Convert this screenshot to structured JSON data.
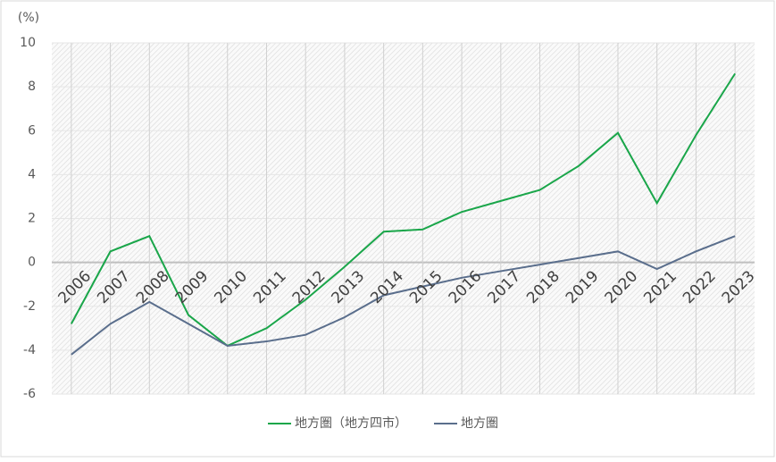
{
  "chart_data": {
    "type": "line",
    "y_label": "(%)",
    "categories": [
      "2006",
      "2007",
      "2008",
      "2009",
      "2010",
      "2011",
      "2012",
      "2013",
      "2014",
      "2015",
      "2016",
      "2017",
      "2018",
      "2019",
      "2020",
      "2021",
      "2022",
      "2023"
    ],
    "series": [
      {
        "name": "地方圏（地方四市）",
        "color": "#1aa64a",
        "values": [
          -2.8,
          0.5,
          1.2,
          -2.4,
          -3.8,
          -3.0,
          -1.7,
          -0.2,
          1.4,
          1.5,
          2.3,
          2.8,
          3.3,
          4.4,
          5.9,
          2.7,
          5.8,
          8.6
        ]
      },
      {
        "name": "地方圏",
        "color": "#5a6e8c",
        "values": [
          -4.2,
          -2.8,
          -1.8,
          -2.8,
          -3.8,
          -3.6,
          -3.3,
          -2.5,
          -1.5,
          -1.1,
          -0.7,
          -0.4,
          -0.1,
          0.2,
          0.5,
          -0.3,
          0.5,
          1.2
        ]
      }
    ],
    "ylim": [
      -6,
      10
    ],
    "yticks": [
      -6,
      -4,
      -2,
      0,
      2,
      4,
      6,
      8,
      10
    ],
    "grid": true,
    "legend": "bottom"
  }
}
